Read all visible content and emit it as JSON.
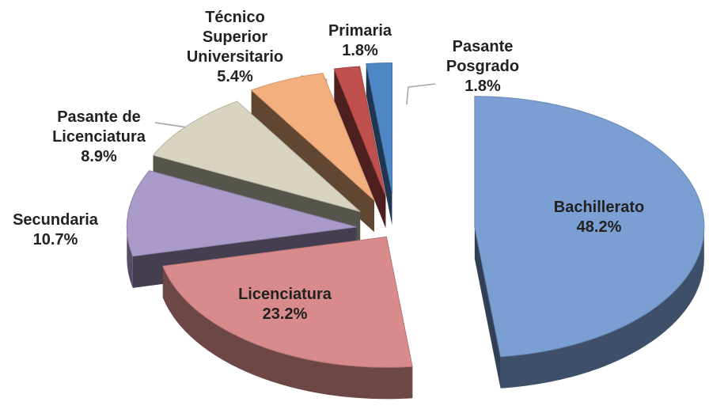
{
  "chart_data": {
    "type": "pie3d",
    "categories": [
      "Bachillerato",
      "Licenciatura",
      "Secundaria",
      "Pasante de Licenciatura",
      "Técnico Superior Universitario",
      "Primaria",
      "Pasante Posgrado"
    ],
    "values": [
      48.2,
      23.2,
      10.7,
      8.9,
      5.4,
      1.8,
      1.8
    ],
    "value_labels": [
      "48.2%",
      "23.2%",
      "10.7%",
      "8.9%",
      "5.4%",
      "1.8%",
      "1.8%"
    ],
    "colors": [
      "#7b9fd2",
      "#d98b8b",
      "#a99ac9",
      "#d8d4c0",
      "#f3b07e",
      "#c0504d",
      "#4f86c6"
    ]
  }
}
